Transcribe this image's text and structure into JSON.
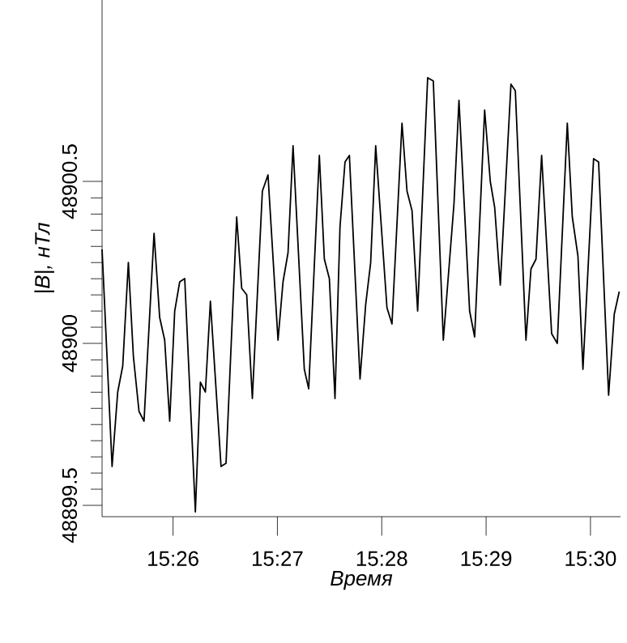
{
  "chart_data": {
    "type": "line",
    "xlabel": "Время",
    "ylabel": "|B|, нТл",
    "color": "#000000",
    "x": [
      15.422,
      15.4236,
      15.4245,
      15.4253,
      15.4262,
      15.427,
      15.4279,
      15.4287,
      15.4303,
      15.4312,
      15.432,
      15.4328,
      15.4336,
      15.4344,
      15.4352,
      15.4369,
      15.4377,
      15.4385,
      15.4393,
      15.441,
      15.4418,
      15.4435,
      15.4443,
      15.4451,
      15.446,
      15.4476,
      15.4485,
      15.4501,
      15.4509,
      15.4517,
      15.4525,
      15.4543,
      15.455,
      15.4567,
      15.4575,
      15.4583,
      15.4592,
      15.46,
      15.4608,
      15.4615,
      15.4632,
      15.4641,
      15.4649,
      15.4657,
      15.4675,
      15.4683,
      15.4699,
      15.4707,
      15.4715,
      15.4724,
      15.474,
      15.4749,
      15.4765,
      15.4782,
      15.479,
      15.4807,
      15.4815,
      15.4831,
      15.484,
      15.4847,
      15.4856,
      15.4873,
      15.488,
      15.4897,
      15.4905,
      15.4913,
      15.4922,
      15.4938,
      15.4947,
      15.4963,
      15.4971,
      15.498,
      15.4988,
      15.5005,
      15.5013,
      15.5029,
      15.5038,
      15.5046
    ],
    "values": [
      48900.29,
      48899.62,
      48899.85,
      48899.93,
      48900.25,
      48899.96,
      48899.79,
      48899.76,
      48900.34,
      48900.08,
      48900.01,
      48899.76,
      48900.1,
      48900.19,
      48900.2,
      48899.48,
      48899.88,
      48899.85,
      48900.13,
      48899.62,
      48899.63,
      48900.39,
      48900.17,
      48900.15,
      48899.83,
      48900.47,
      48900.52,
      48900.01,
      48900.19,
      48900.28,
      48900.61,
      48899.92,
      48899.86,
      48900.58,
      48900.26,
      48900.2,
      48899.83,
      48900.36,
      48900.56,
      48900.58,
      48899.89,
      48900.12,
      48900.25,
      48900.61,
      48900.11,
      48900.06,
      48900.68,
      48900.47,
      48900.41,
      48900.1,
      48900.82,
      48900.81,
      48900.01,
      48900.43,
      48900.75,
      48900.1,
      48900.02,
      48900.72,
      48900.5,
      48900.42,
      48900.18,
      48900.8,
      48900.78,
      48900.01,
      48900.23,
      48900.26,
      48900.58,
      48900.03,
      48900.0,
      48900.68,
      48900.39,
      48900.27,
      48899.92,
      48900.57,
      48900.56,
      48899.84,
      48900.09,
      48900.16
    ],
    "xlim": [
      15.422,
      15.5048
    ],
    "ylim": [
      48899.465,
      48901.06
    ],
    "xticks": [
      {
        "value": 15.433333,
        "label": "15:26"
      },
      {
        "value": 15.45,
        "label": "15:27"
      },
      {
        "value": 15.466667,
        "label": "15:28"
      },
      {
        "value": 15.483333,
        "label": "15:29"
      },
      {
        "value": 15.5,
        "label": "15:30"
      }
    ],
    "yticks": [
      48899.5,
      48900,
      48900.5
    ],
    "grid": false,
    "marker": "none",
    "line_style": "solid"
  }
}
